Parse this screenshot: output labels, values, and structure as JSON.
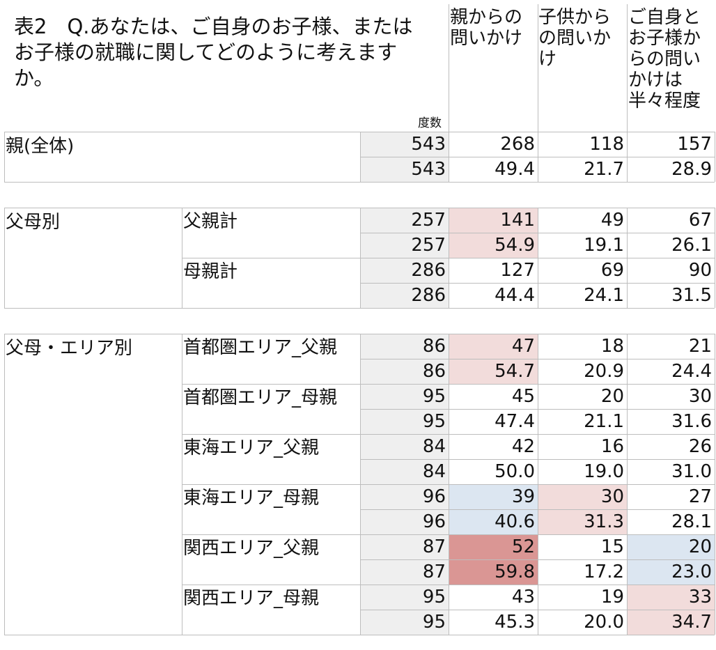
{
  "title": "表2　Q.あなたは、ご自身のお子様、またはお子様の就職に関してどのように考えますか。",
  "freq_label": "度数",
  "headers": [
    "親からの問いかけ",
    "子供からの問いかけ",
    "ご自身とお子様からの問いかけは半々程度"
  ],
  "header_lines": [
    [
      "親からの",
      "問いかけ"
    ],
    [
      "子供から",
      "の問いか",
      "け"
    ],
    [
      "ご自身と",
      "お子様か",
      "らの問い",
      "かけは",
      "半々程度"
    ]
  ],
  "groups": [
    {
      "label": "親(全体)",
      "subs": [
        {
          "label": "",
          "n": [
            "543",
            "543"
          ],
          "a": [
            "268",
            "49.4"
          ],
          "b": [
            "118",
            "21.7"
          ],
          "c": [
            "157",
            "28.9"
          ]
        }
      ]
    },
    {
      "label": "父母別",
      "subs": [
        {
          "label": "父親計",
          "n": [
            "257",
            "257"
          ],
          "a": [
            "141",
            "54.9"
          ],
          "b": [
            "49",
            "19.1"
          ],
          "c": [
            "67",
            "26.1"
          ]
        },
        {
          "label": "母親計",
          "n": [
            "286",
            "286"
          ],
          "a": [
            "127",
            "44.4"
          ],
          "b": [
            "69",
            "24.1"
          ],
          "c": [
            "90",
            "31.5"
          ]
        }
      ]
    },
    {
      "label": "父母・エリア別",
      "subs": [
        {
          "label": "首都圏エリア_父親",
          "n": [
            "86",
            "86"
          ],
          "a": [
            "47",
            "54.7"
          ],
          "b": [
            "18",
            "20.9"
          ],
          "c": [
            "21",
            "24.4"
          ]
        },
        {
          "label": "首都圏エリア_母親",
          "n": [
            "95",
            "95"
          ],
          "a": [
            "45",
            "47.4"
          ],
          "b": [
            "20",
            "21.1"
          ],
          "c": [
            "30",
            "31.6"
          ]
        },
        {
          "label": "東海エリア_父親",
          "n": [
            "84",
            "84"
          ],
          "a": [
            "42",
            "50.0"
          ],
          "b": [
            "16",
            "19.0"
          ],
          "c": [
            "26",
            "31.0"
          ]
        },
        {
          "label": "東海エリア_母親",
          "n": [
            "96",
            "96"
          ],
          "a": [
            "39",
            "40.6"
          ],
          "b": [
            "30",
            "31.3"
          ],
          "c": [
            "27",
            "28.1"
          ]
        },
        {
          "label": "関西エリア_父親",
          "n": [
            "87",
            "87"
          ],
          "a": [
            "52",
            "59.8"
          ],
          "b": [
            "15",
            "17.2"
          ],
          "c": [
            "20",
            "23.0"
          ]
        },
        {
          "label": "関西エリア_母親",
          "n": [
            "95",
            "95"
          ],
          "a": [
            "43",
            "45.3"
          ],
          "b": [
            "19",
            "20.0"
          ],
          "c": [
            "33",
            "34.7"
          ]
        }
      ]
    }
  ],
  "highlight_colors": {
    "n": "#efefef",
    "light_red": "#f2dcdb",
    "dark_red": "#da9694",
    "light_blue": "#dce6f1"
  },
  "highlights": {
    "父親計": {
      "a": "light_red"
    },
    "首都圏エリア_父親": {
      "a": "light_red"
    },
    "東海エリア_母親": {
      "a": "light_blue",
      "b": "light_red"
    },
    "関西エリア_父親": {
      "a": "dark_red",
      "c": "light_blue"
    },
    "関西エリア_母親": {
      "c": "light_red"
    }
  }
}
